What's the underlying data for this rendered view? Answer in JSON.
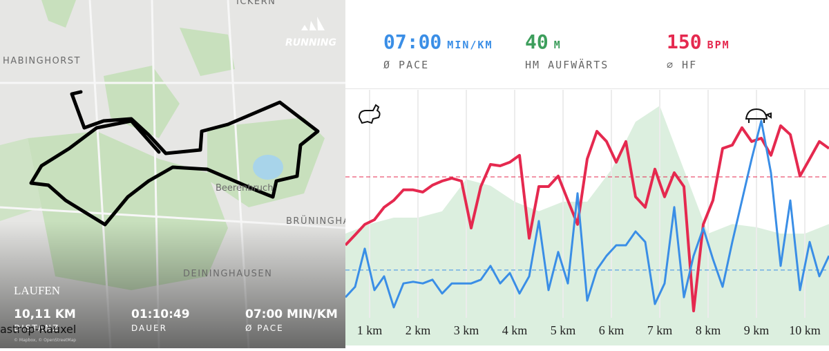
{
  "map": {
    "brand": "RUNNING",
    "places": [
      "ICKERN",
      "HABINGHORST",
      "Beerenbruch",
      "BRÜNINGHA",
      "DEININGHAUSEN",
      "astrop-Rauxel"
    ],
    "activity": "LAUFEN",
    "stats": [
      {
        "text": "10,11 KM",
        "caption": "DISTANZ"
      },
      {
        "text": "01:10:49",
        "caption": "DAUER"
      },
      {
        "text": "07:00 MIN/KM",
        "caption": "Ø PACE"
      }
    ],
    "attribution": "© Mapbox, © OpenStreetMap"
  },
  "stats": [
    {
      "value": {
        "value": 7,
        "label": "07:00"
      },
      "unit": "MIN/KM",
      "label": "Ø PACE",
      "color": "#3a8ee6"
    },
    {
      "value": 40,
      "unit": "M",
      "label": "HM AUFWÄRTS",
      "color": "#3d9e5c"
    },
    {
      "value": 150,
      "unit": "BPM",
      "label": "∅ HF",
      "color": "#e5294f"
    }
  ],
  "chart_data": {
    "type": "line",
    "x": [
      0.5,
      0.7,
      0.9,
      1.1,
      1.3,
      1.5,
      1.7,
      1.9,
      2.1,
      2.3,
      2.5,
      2.7,
      2.9,
      3.1,
      3.3,
      3.5,
      3.7,
      3.9,
      4.1,
      4.3,
      4.5,
      4.7,
      4.9,
      5.1,
      5.3,
      5.5,
      5.7,
      5.9,
      6.1,
      6.3,
      6.5,
      6.7,
      6.9,
      7.1,
      7.3,
      7.5,
      7.7,
      7.9,
      8.1,
      8.3,
      8.5,
      8.7,
      8.9,
      9.1,
      9.3,
      9.5,
      9.7,
      9.9,
      10.1,
      10.3,
      10.5
    ],
    "xlim": [
      0.5,
      10.5
    ],
    "xticks": [
      {
        "value": 1,
        "label": "1 km"
      },
      {
        "value": 2,
        "label": "2 km"
      },
      {
        "value": 3,
        "label": "3 km"
      },
      {
        "value": 4,
        "label": "4 km"
      },
      {
        "value": 5,
        "label": "5 km"
      },
      {
        "value": 6,
        "label": "6 km"
      },
      {
        "value": 7,
        "label": "7 km"
      },
      {
        "value": 8,
        "label": "8 km"
      },
      {
        "value": 9,
        "label": "9 km"
      },
      {
        "value": 10,
        "label": "10 km"
      }
    ],
    "ylim": [
      89,
      181.5
    ],
    "y2lim": [
      5.2,
      11.3
    ],
    "series": [
      {
        "color": "#e5294f",
        "values": [
          125.3,
          129,
          132.8,
          134.5,
          139,
          141.5,
          145.3,
          145.3,
          144.5,
          147,
          148.5,
          149.5,
          148.5,
          131.5,
          146.5,
          154.5,
          154,
          155.3,
          157.8,
          127.8,
          146.5,
          146.5,
          150.3,
          141.5,
          132.8,
          156.5,
          166.5,
          162.8,
          155.3,
          162.8,
          142.8,
          139,
          152.8,
          142.8,
          151.5,
          146.5,
          101.5,
          132.8,
          141.5,
          160.3,
          161.5,
          167.8,
          162.8,
          164,
          157.8,
          168.5,
          165.3,
          150.3,
          156.5,
          162.8,
          160.3
        ]
      },
      {
        "color": "#3a8ee6",
        "axis": "y2",
        "values": [
          6.35,
          6.6,
          7.51,
          6.52,
          6.85,
          6.11,
          6.68,
          6.72,
          6.68,
          6.77,
          6.44,
          6.68,
          6.68,
          6.68,
          6.77,
          7.1,
          6.68,
          6.93,
          6.44,
          6.85,
          8.17,
          6.52,
          7.43,
          6.68,
          8.83,
          6.27,
          7.01,
          7.34,
          7.59,
          7.59,
          7.92,
          7.67,
          6.19,
          6.68,
          8.5,
          6.35,
          7.34,
          8,
          7.26,
          6.6,
          7.67,
          8.66,
          9.65,
          10.56,
          9.32,
          7.1,
          8.66,
          6.52,
          7.67,
          6.85,
          7.34
        ]
      }
    ],
    "elevation": {
      "color": "#dcefdf",
      "ylim": [
        0,
        80
      ],
      "x": [
        0.5,
        1,
        1.5,
        2,
        2.5,
        3,
        3.5,
        4,
        4.5,
        5,
        5.5,
        6,
        6.5,
        7,
        7.5,
        8,
        8.5,
        9,
        9.5,
        10,
        10.5
      ],
      "values": [
        35,
        38,
        40,
        40,
        42,
        52,
        50,
        45,
        42,
        45,
        45,
        55,
        70,
        75,
        55,
        35,
        38,
        37,
        35,
        35,
        38
      ]
    },
    "reference_lines": {
      "dash": "6 4"
    }
  }
}
